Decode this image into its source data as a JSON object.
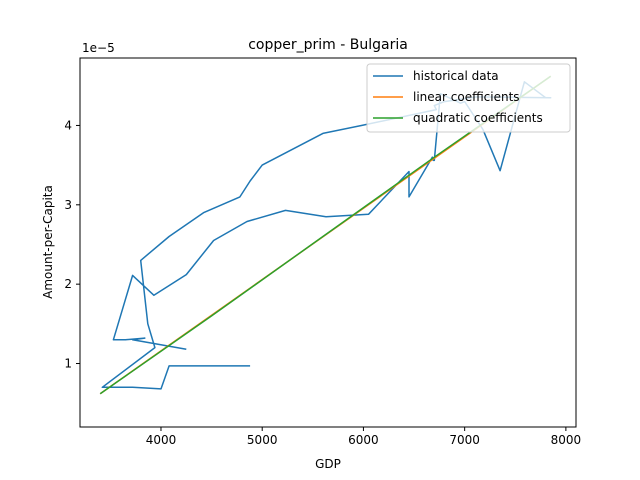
{
  "chart_data": {
    "type": "line",
    "title": "copper_prim - Bulgaria",
    "xlabel": "GDP",
    "ylabel": "Amount-per-Capita",
    "y_offset_text": "1e−5",
    "xlim": [
      3200,
      8100
    ],
    "ylim": [
      0.2,
      4.85
    ],
    "y_scale_note": "values in units of 1e-5",
    "x_ticks": [
      4000,
      5000,
      6000,
      7000,
      8000
    ],
    "y_ticks": [
      1,
      2,
      3,
      4
    ],
    "x_tick_labels": [
      "4000",
      "5000",
      "6000",
      "7000",
      "8000"
    ],
    "y_tick_labels": [
      "1",
      "2",
      "3",
      "4"
    ],
    "grid": false,
    "legend_position": "top-right",
    "series": [
      {
        "name": "historical data",
        "color": "#1f77b4",
        "x": [
          4250,
          3720,
          3840,
          3650,
          3530,
          3720,
          3930,
          4250,
          4520,
          4850,
          5230,
          5630,
          6050,
          6450,
          6450,
          6680,
          6690,
          6700,
          6760,
          6960,
          7000,
          7180,
          7350,
          7590,
          7800,
          7850,
          7120,
          6800,
          6700,
          6720,
          5980,
          5600,
          5000,
          4880,
          4780,
          4420,
          4080,
          3800,
          3870,
          3940,
          3420,
          3720,
          4000,
          4080,
          4800,
          4880
        ],
        "y": [
          1.18,
          1.3,
          1.32,
          1.3,
          1.3,
          2.11,
          1.86,
          2.12,
          2.55,
          2.79,
          2.93,
          2.85,
          2.88,
          3.42,
          3.1,
          3.6,
          3.56,
          3.56,
          4.4,
          4.28,
          4.3,
          3.95,
          3.43,
          4.55,
          4.35,
          4.35,
          4.36,
          4.3,
          4.25,
          4.2,
          4.0,
          3.9,
          3.5,
          3.3,
          3.1,
          2.9,
          2.6,
          2.3,
          1.5,
          1.2,
          0.7,
          0.7,
          0.68,
          0.97,
          0.97,
          0.97
        ]
      },
      {
        "name": "linear coefficients",
        "color": "#ff7f0e",
        "x": [
          3400,
          7850
        ],
        "y": [
          0.62,
          4.62
        ]
      },
      {
        "name": "quadratic coefficients",
        "color": "#2ca02c",
        "x": [
          3400,
          4500,
          5600,
          6700,
          7850
        ],
        "y": [
          0.62,
          1.6,
          2.6,
          3.6,
          4.62
        ]
      }
    ]
  }
}
